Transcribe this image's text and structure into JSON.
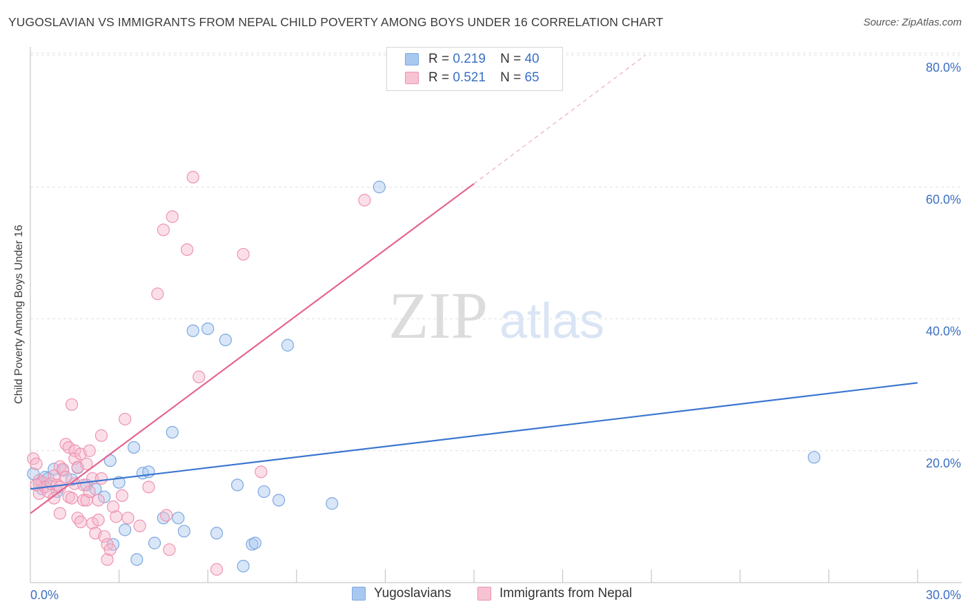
{
  "header": {
    "title": "YUGOSLAVIAN VS IMMIGRANTS FROM NEPAL CHILD POVERTY AMONG BOYS UNDER 16 CORRELATION CHART",
    "source": "Source: ZipAtlas.com"
  },
  "watermark": {
    "zip": "ZIP",
    "atlas": "atlas"
  },
  "legend_stats": [
    {
      "r_label": "R =",
      "r_value": "0.219",
      "n_label": "N =",
      "n_value": "40"
    },
    {
      "r_label": "R =",
      "r_value": "0.521",
      "n_label": "N =",
      "n_value": "65"
    }
  ],
  "colors": {
    "series1_fill": "#a9c8f0",
    "series1_stroke": "#7ba7e0",
    "series1_line": "#3a76d0",
    "series2_fill": "#f7b9cc",
    "series2_stroke": "#ee93b0",
    "series2_line": "#e4648e",
    "tick_text": "#3a6fc4",
    "grid": "#e0e0e0"
  },
  "chart_data": {
    "type": "scatter",
    "title": "YUGOSLAVIAN VS IMMIGRANTS FROM NEPAL CHILD POVERTY AMONG BOYS UNDER 16 CORRELATION CHART",
    "xlabel": "",
    "ylabel": "Child Poverty Among Boys Under 16",
    "xlim": [
      0,
      30
    ],
    "ylim": [
      0,
      80
    ],
    "x_tick_labels": [
      "0.0%",
      "30.0%"
    ],
    "y_ticks": [
      20,
      40,
      60,
      80
    ],
    "y_tick_labels": [
      "20.0%",
      "40.0%",
      "60.0%",
      "80.0%"
    ],
    "grid": true,
    "legend_position": "bottom",
    "series": [
      {
        "name": "Yugoslavians",
        "r": 0.219,
        "n": 40,
        "trend": {
          "x": [
            0,
            30
          ],
          "y": [
            14.2,
            30.3
          ]
        },
        "points": [
          [
            0.1,
            16.5
          ],
          [
            0.3,
            15.0
          ],
          [
            0.4,
            14.2
          ],
          [
            0.5,
            16.0
          ],
          [
            0.6,
            15.8
          ],
          [
            0.8,
            17.2
          ],
          [
            0.9,
            13.8
          ],
          [
            1.1,
            17.0
          ],
          [
            1.4,
            15.6
          ],
          [
            1.6,
            17.4
          ],
          [
            1.9,
            14.8
          ],
          [
            2.2,
            14.2
          ],
          [
            2.5,
            13.0
          ],
          [
            2.7,
            18.5
          ],
          [
            2.8,
            5.8
          ],
          [
            3.0,
            15.2
          ],
          [
            3.2,
            8.0
          ],
          [
            3.5,
            20.5
          ],
          [
            3.6,
            3.5
          ],
          [
            3.8,
            16.6
          ],
          [
            4.0,
            16.8
          ],
          [
            4.2,
            6.0
          ],
          [
            4.5,
            9.8
          ],
          [
            4.8,
            22.8
          ],
          [
            5.0,
            9.8
          ],
          [
            5.2,
            7.8
          ],
          [
            5.5,
            38.2
          ],
          [
            6.0,
            38.5
          ],
          [
            6.3,
            7.5
          ],
          [
            6.6,
            36.8
          ],
          [
            7.0,
            14.8
          ],
          [
            7.2,
            2.5
          ],
          [
            7.5,
            5.8
          ],
          [
            7.6,
            6.0
          ],
          [
            7.9,
            13.8
          ],
          [
            8.4,
            12.5
          ],
          [
            8.7,
            36.0
          ],
          [
            10.2,
            12.0
          ],
          [
            11.8,
            60.0
          ],
          [
            26.5,
            19.0
          ]
        ]
      },
      {
        "name": "Immigrants from Nepal",
        "r": 0.521,
        "n": 65,
        "trend": {
          "x": [
            0,
            15
          ],
          "y": [
            10.5,
            60.5
          ]
        },
        "trend_dashed": {
          "x": [
            15,
            20.8
          ],
          "y": [
            60.5,
            80
          ]
        },
        "points": [
          [
            0.1,
            18.8
          ],
          [
            0.2,
            18.0
          ],
          [
            0.3,
            15.5
          ],
          [
            0.3,
            13.5
          ],
          [
            0.4,
            15.2
          ],
          [
            0.5,
            14.5
          ],
          [
            0.6,
            13.8
          ],
          [
            0.7,
            15.0
          ],
          [
            0.8,
            16.2
          ],
          [
            0.8,
            12.8
          ],
          [
            0.9,
            14.8
          ],
          [
            1.0,
            17.6
          ],
          [
            1.0,
            10.5
          ],
          [
            1.1,
            17.2
          ],
          [
            1.2,
            21.0
          ],
          [
            1.2,
            16.0
          ],
          [
            1.3,
            13.0
          ],
          [
            1.3,
            20.5
          ],
          [
            1.4,
            12.8
          ],
          [
            1.4,
            27.0
          ],
          [
            1.5,
            15.0
          ],
          [
            1.5,
            20.0
          ],
          [
            1.5,
            18.8
          ],
          [
            1.6,
            9.8
          ],
          [
            1.6,
            17.5
          ],
          [
            1.7,
            19.5
          ],
          [
            1.7,
            9.2
          ],
          [
            1.8,
            12.5
          ],
          [
            1.8,
            14.8
          ],
          [
            1.9,
            12.5
          ],
          [
            1.9,
            18.0
          ],
          [
            2.0,
            13.8
          ],
          [
            2.0,
            20.0
          ],
          [
            2.1,
            9.0
          ],
          [
            2.1,
            15.8
          ],
          [
            2.2,
            7.5
          ],
          [
            2.3,
            9.5
          ],
          [
            2.3,
            12.5
          ],
          [
            2.4,
            15.8
          ],
          [
            2.4,
            22.3
          ],
          [
            2.5,
            7.0
          ],
          [
            2.6,
            5.8
          ],
          [
            2.6,
            3.5
          ],
          [
            2.7,
            5.0
          ],
          [
            2.8,
            11.5
          ],
          [
            2.9,
            10.0
          ],
          [
            3.1,
            13.2
          ],
          [
            3.2,
            24.8
          ],
          [
            3.3,
            9.8
          ],
          [
            3.7,
            8.6
          ],
          [
            4.0,
            14.5
          ],
          [
            4.3,
            43.8
          ],
          [
            4.5,
            53.5
          ],
          [
            4.6,
            10.2
          ],
          [
            4.7,
            5.0
          ],
          [
            4.8,
            55.5
          ],
          [
            5.3,
            50.5
          ],
          [
            5.5,
            61.5
          ],
          [
            5.7,
            31.2
          ],
          [
            6.3,
            2.0
          ],
          [
            7.2,
            49.8
          ],
          [
            7.8,
            16.8
          ],
          [
            11.3,
            58.0
          ],
          [
            0.2,
            14.8
          ],
          [
            1.0,
            14.5
          ]
        ]
      }
    ]
  }
}
